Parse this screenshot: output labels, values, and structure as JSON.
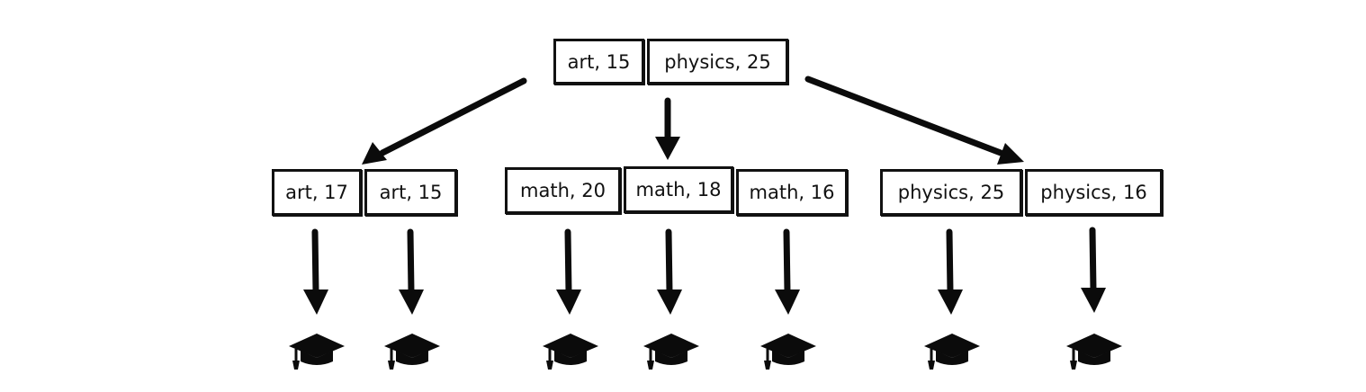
{
  "root": {
    "keys": [
      {
        "label": "art, 15"
      },
      {
        "label": "physics, 25"
      }
    ]
  },
  "leaves": [
    {
      "keys": [
        {
          "label": "art, 17"
        },
        {
          "label": "art, 15"
        }
      ]
    },
    {
      "keys": [
        {
          "label": "math, 20"
        },
        {
          "label": "math, 18"
        },
        {
          "label": "math, 16"
        }
      ]
    },
    {
      "keys": [
        {
          "label": "physics, 25"
        },
        {
          "label": "physics, 16"
        }
      ]
    }
  ],
  "icons": {
    "record": "graduation-cap-icon"
  },
  "colors": {
    "ink": "#0b0b0b",
    "background": "#ffffff"
  }
}
